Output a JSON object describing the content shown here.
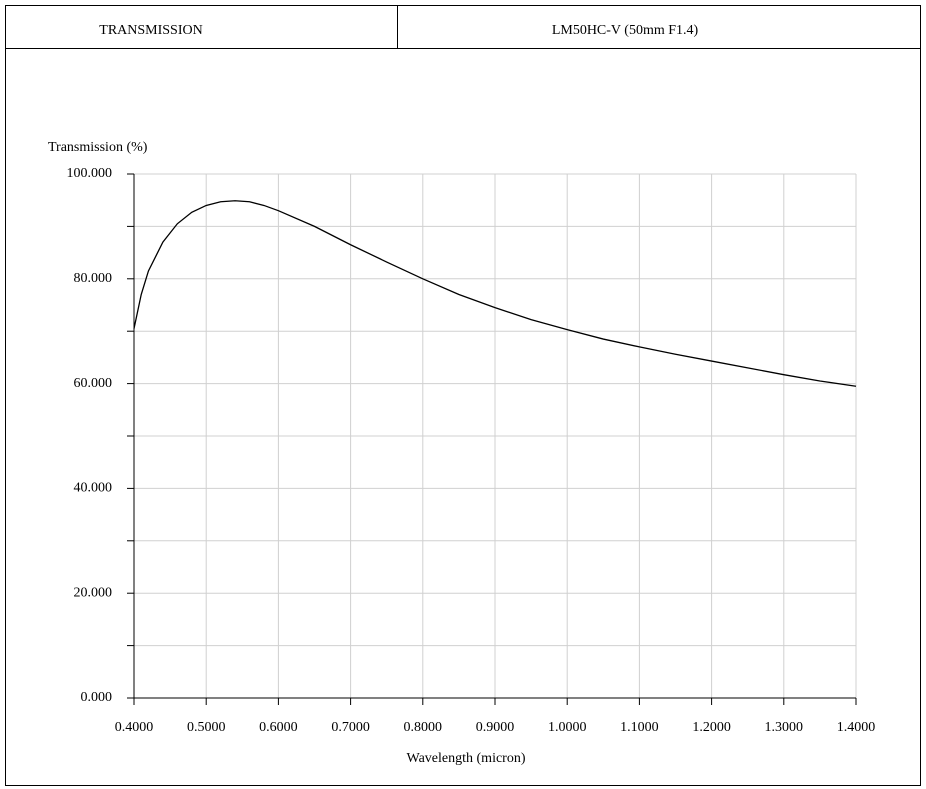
{
  "header": {
    "left": "TRANSMISSION",
    "right": "LM50HC-V (50mm F1.4)"
  },
  "chart_data": {
    "type": "line",
    "y_label": "Transmission (%)",
    "x_label": "Wavelength (micron)",
    "x": [
      0.4,
      0.41,
      0.42,
      0.44,
      0.46,
      0.48,
      0.5,
      0.52,
      0.54,
      0.56,
      0.58,
      0.6,
      0.65,
      0.7,
      0.75,
      0.8,
      0.85,
      0.9,
      0.95,
      1.0,
      1.05,
      1.1,
      1.15,
      1.2,
      1.25,
      1.3,
      1.35,
      1.4
    ],
    "series": [
      {
        "name": "Transmission",
        "color": "#000000",
        "values": [
          70.5,
          77,
          81.5,
          87,
          90.5,
          92.7,
          94.0,
          94.7,
          94.9,
          94.7,
          94.0,
          93.0,
          90,
          86.5,
          83.2,
          80,
          77,
          74.5,
          72.2,
          70.3,
          68.5,
          67,
          65.6,
          64.3,
          63,
          61.7,
          60.5,
          59.5
        ]
      }
    ],
    "xlim": [
      0.4,
      1.4
    ],
    "xticks": [
      {
        "value": 0.4,
        "label": "0.4000"
      },
      {
        "value": 0.5,
        "label": "0.5000"
      },
      {
        "value": 0.6,
        "label": "0.6000"
      },
      {
        "value": 0.7,
        "label": "0.7000"
      },
      {
        "value": 0.8,
        "label": "0.8000"
      },
      {
        "value": 0.9,
        "label": "0.9000"
      },
      {
        "value": 1.0,
        "label": "1.0000"
      },
      {
        "value": 1.1,
        "label": "1.1000"
      },
      {
        "value": 1.2,
        "label": "1.2000"
      },
      {
        "value": 1.3,
        "label": "1.3000"
      },
      {
        "value": 1.4,
        "label": "1.4000"
      }
    ],
    "ylim": [
      0,
      100
    ],
    "yticks": [
      {
        "value": 0,
        "label": "0.000"
      },
      {
        "value": 20,
        "label": "20.000"
      },
      {
        "value": 40,
        "label": "40.000"
      },
      {
        "value": 60,
        "label": "60.000"
      },
      {
        "value": 80,
        "label": "80.000"
      },
      {
        "value": 100,
        "label": "100.000"
      }
    ],
    "yminor": [
      10,
      30,
      50,
      70,
      90
    ],
    "grid": true
  }
}
